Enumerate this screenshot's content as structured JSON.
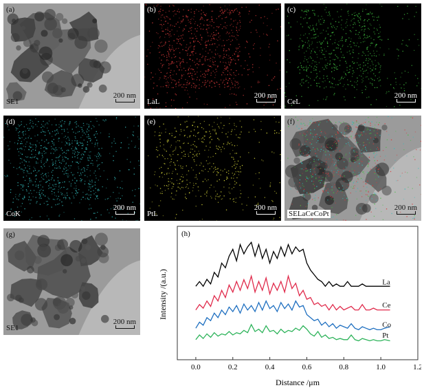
{
  "panels": [
    {
      "tag": "(a)",
      "label": "SE1",
      "scale": "200 nm"
    },
    {
      "tag": "(b)",
      "label": "LaL",
      "scale": "200 nm"
    },
    {
      "tag": "(c)",
      "label": "CeL",
      "scale": "200 nm"
    },
    {
      "tag": "(d)",
      "label": "CoK",
      "scale": "200 nm"
    },
    {
      "tag": "(e)",
      "label": "PtL",
      "scale": "200 nm"
    },
    {
      "tag": "(f)",
      "label": "SELaCeCoPt",
      "scale": "200 nm"
    },
    {
      "tag": "(g)",
      "label": "SE1",
      "scale": "200 nm"
    }
  ],
  "map_colors": {
    "LaL": "#d83a3a",
    "CeL": "#3fbf3f",
    "CoK": "#33bbbb",
    "PtL": "#d8d83a"
  },
  "chart_data": {
    "type": "line",
    "tag": "(h)",
    "xlabel": "Distance /μm",
    "ylabel": "Intensity /(a.u.)",
    "xlim": [
      -0.1,
      1.2
    ],
    "xticks": [
      "0.0",
      "0.2",
      "0.4",
      "0.6",
      "0.8",
      "1.0",
      "1.2"
    ],
    "xtick_values": [
      0,
      0.2,
      0.4,
      0.6,
      0.8,
      1.0,
      1.2
    ],
    "y_ticks_shown": false,
    "series": [
      {
        "name": "La",
        "color": "#000000",
        "baseline": 4.0,
        "peak_height": 2.6,
        "x": [
          0.0,
          0.02,
          0.04,
          0.06,
          0.08,
          0.1,
          0.12,
          0.14,
          0.16,
          0.18,
          0.2,
          0.22,
          0.24,
          0.26,
          0.28,
          0.3,
          0.32,
          0.34,
          0.36,
          0.38,
          0.4,
          0.42,
          0.44,
          0.46,
          0.48,
          0.5,
          0.52,
          0.54,
          0.56,
          0.58,
          0.6,
          0.62,
          0.64,
          0.66,
          0.68,
          0.7,
          0.72,
          0.74,
          0.76,
          0.78,
          0.8,
          0.82,
          0.84,
          0.86,
          0.88,
          0.9,
          0.92,
          0.94,
          0.96,
          0.98,
          1.0,
          1.02,
          1.05
        ],
        "y": [
          0.05,
          0.15,
          0.05,
          0.2,
          0.1,
          0.35,
          0.25,
          0.55,
          0.45,
          0.7,
          0.85,
          0.6,
          0.95,
          0.75,
          0.9,
          1.0,
          0.7,
          0.95,
          0.65,
          0.85,
          0.55,
          0.8,
          0.65,
          0.9,
          0.7,
          0.95,
          0.75,
          0.9,
          0.8,
          0.85,
          0.55,
          0.4,
          0.3,
          0.2,
          0.15,
          0.05,
          0.15,
          0.05,
          0.1,
          0.05,
          0.05,
          0.15,
          0.05,
          0.05,
          0.05,
          0.1,
          0.05,
          0.05,
          0.05,
          0.05,
          0.05,
          0.05,
          0.05
        ]
      },
      {
        "name": "Ce",
        "color": "#e0294a",
        "baseline": 2.7,
        "peak_height": 2.0,
        "x": [
          0.0,
          0.02,
          0.04,
          0.06,
          0.08,
          0.1,
          0.12,
          0.14,
          0.16,
          0.18,
          0.2,
          0.22,
          0.24,
          0.26,
          0.28,
          0.3,
          0.32,
          0.34,
          0.36,
          0.38,
          0.4,
          0.42,
          0.44,
          0.46,
          0.48,
          0.5,
          0.52,
          0.54,
          0.56,
          0.58,
          0.6,
          0.62,
          0.64,
          0.66,
          0.68,
          0.7,
          0.72,
          0.74,
          0.76,
          0.78,
          0.8,
          0.82,
          0.84,
          0.86,
          0.88,
          0.9,
          0.92,
          0.94,
          0.96,
          0.98,
          1.0,
          1.02,
          1.05
        ],
        "y": [
          0.05,
          0.2,
          0.1,
          0.3,
          0.15,
          0.45,
          0.3,
          0.6,
          0.4,
          0.75,
          0.55,
          0.85,
          0.6,
          0.9,
          0.65,
          1.0,
          0.55,
          0.85,
          0.6,
          0.95,
          0.5,
          0.8,
          0.6,
          0.85,
          0.55,
          1.0,
          0.65,
          0.8,
          0.45,
          0.6,
          0.35,
          0.4,
          0.2,
          0.25,
          0.15,
          0.2,
          0.05,
          0.2,
          0.05,
          0.15,
          0.05,
          0.1,
          0.15,
          0.05,
          0.05,
          0.2,
          0.05,
          0.05,
          0.1,
          0.05,
          0.05,
          0.05,
          0.05
        ]
      },
      {
        "name": "Co",
        "color": "#1e6fc0",
        "baseline": 1.6,
        "peak_height": 1.7,
        "x": [
          0.0,
          0.02,
          0.04,
          0.06,
          0.08,
          0.1,
          0.12,
          0.14,
          0.16,
          0.18,
          0.2,
          0.22,
          0.24,
          0.26,
          0.28,
          0.3,
          0.32,
          0.34,
          0.36,
          0.38,
          0.4,
          0.42,
          0.44,
          0.46,
          0.48,
          0.5,
          0.52,
          0.54,
          0.56,
          0.58,
          0.6,
          0.62,
          0.64,
          0.66,
          0.68,
          0.7,
          0.72,
          0.74,
          0.76,
          0.78,
          0.8,
          0.82,
          0.84,
          0.86,
          0.88,
          0.9,
          0.92,
          0.94,
          0.96,
          0.98,
          1.0,
          1.02,
          1.05
        ],
        "y": [
          0.1,
          0.3,
          0.2,
          0.45,
          0.35,
          0.6,
          0.45,
          0.7,
          0.55,
          0.8,
          0.65,
          0.85,
          0.6,
          0.9,
          0.7,
          0.85,
          0.65,
          0.95,
          0.7,
          1.0,
          0.75,
          0.85,
          0.65,
          0.95,
          0.75,
          0.9,
          0.7,
          1.0,
          0.8,
          0.85,
          0.55,
          0.45,
          0.35,
          0.4,
          0.2,
          0.3,
          0.15,
          0.25,
          0.1,
          0.2,
          0.15,
          0.1,
          0.25,
          0.1,
          0.05,
          0.15,
          0.1,
          0.05,
          0.1,
          0.05,
          0.05,
          0.1,
          0.15
        ]
      },
      {
        "name": "Pt",
        "color": "#2db35a",
        "baseline": 1.0,
        "peak_height": 1.3,
        "x": [
          0.0,
          0.02,
          0.04,
          0.06,
          0.08,
          0.1,
          0.12,
          0.14,
          0.16,
          0.18,
          0.2,
          0.22,
          0.24,
          0.26,
          0.28,
          0.3,
          0.32,
          0.34,
          0.36,
          0.38,
          0.4,
          0.42,
          0.44,
          0.46,
          0.48,
          0.5,
          0.52,
          0.54,
          0.56,
          0.58,
          0.6,
          0.62,
          0.64,
          0.66,
          0.68,
          0.7,
          0.72,
          0.74,
          0.76,
          0.78,
          0.8,
          0.82,
          0.84,
          0.86,
          0.88,
          0.9,
          0.92,
          0.94,
          0.96,
          0.98,
          1.0,
          1.02,
          1.05
        ],
        "y": [
          0.1,
          0.3,
          0.15,
          0.35,
          0.2,
          0.4,
          0.25,
          0.35,
          0.3,
          0.45,
          0.3,
          0.4,
          0.35,
          0.5,
          0.4,
          0.75,
          0.45,
          0.55,
          0.4,
          0.7,
          0.45,
          0.5,
          0.35,
          0.55,
          0.4,
          0.5,
          0.45,
          0.6,
          0.5,
          0.7,
          0.55,
          0.35,
          0.25,
          0.45,
          0.2,
          0.3,
          0.15,
          0.2,
          0.1,
          0.15,
          0.1,
          0.1,
          0.3,
          0.1,
          0.05,
          0.15,
          0.1,
          0.05,
          0.1,
          0.05,
          0.05,
          0.1,
          0.05
        ]
      }
    ]
  }
}
